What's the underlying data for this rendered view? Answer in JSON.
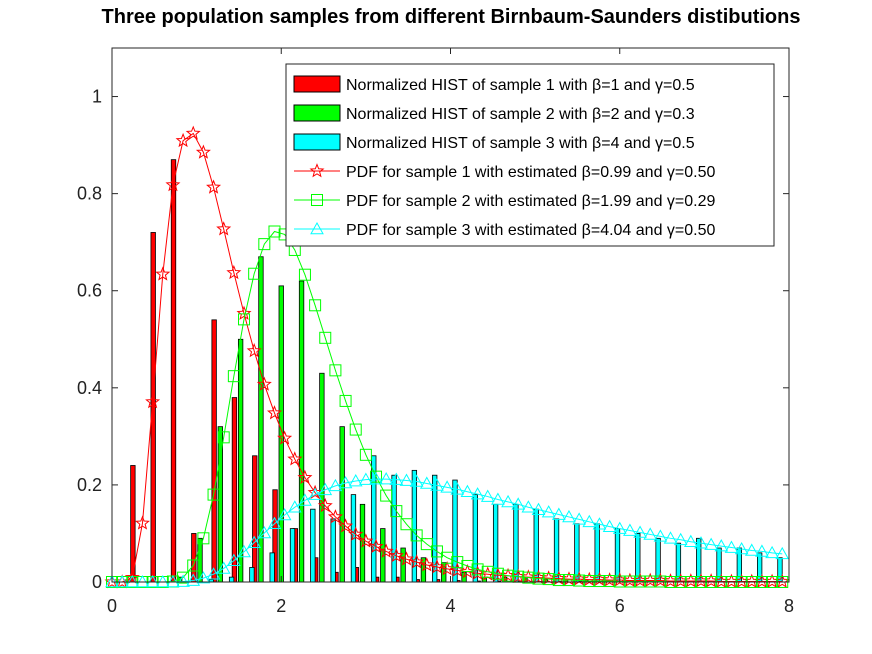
{
  "chart_data": {
    "type": "bar",
    "title": "Three population samples from different Birnbaum-Saunders distibutions",
    "xlabel": "",
    "ylabel": "",
    "xlim": [
      0,
      8
    ],
    "ylim": [
      0,
      1.1
    ],
    "xticks": [
      0,
      2,
      4,
      6,
      8
    ],
    "yticks": [
      0,
      0.2,
      0.4,
      0.6,
      0.8,
      1
    ],
    "xtick_labels": [
      "0",
      "2",
      "4",
      "6",
      "8"
    ],
    "ytick_labels": [
      "0",
      "0.2",
      "0.4",
      "0.6",
      "0.8",
      "1"
    ],
    "grid": false,
    "legend_position": "top-right",
    "histograms": [
      {
        "name": "Normalized HIST of sample 1 with β=1 and γ=0.5",
        "color": "#ff0000",
        "x": [
          0.3,
          0.54,
          0.78,
          1.02,
          1.26,
          1.5,
          1.74,
          1.98,
          2.22,
          2.46,
          2.7,
          2.94,
          3.18,
          3.42,
          3.66,
          3.9,
          4.14,
          4.38,
          4.62,
          4.86,
          5.1,
          5.34,
          5.58,
          5.82,
          6.06,
          6.3,
          6.54,
          6.78,
          7.02,
          7.26,
          7.5,
          7.74
        ],
        "values": [
          0.24,
          0.72,
          0.87,
          0.1,
          0.54,
          0.38,
          0.26,
          0.19,
          0.11,
          0.05,
          0.02,
          0.03,
          0.01,
          0.01,
          0.005,
          0.005,
          0.003,
          0.002,
          0.002,
          0.001,
          0.001,
          0.001,
          0.001,
          0.001,
          0.001,
          0.001,
          0.001,
          0.001,
          0.001,
          0.001,
          0.001,
          0.001
        ]
      },
      {
        "name": "Normalized HIST of sample 2 with β=2 and γ=0.3",
        "color": "#00ff00",
        "x": [
          0.8,
          1.04,
          1.28,
          1.52,
          1.76,
          2.0,
          2.24,
          2.48,
          2.72,
          2.96,
          3.2,
          3.44,
          3.68,
          3.92,
          4.16,
          4.4,
          4.64,
          4.88,
          5.12,
          5.36,
          5.6,
          5.84,
          6.08,
          6.32,
          6.56,
          6.8,
          7.04,
          7.28,
          7.52,
          7.76
        ],
        "values": [
          0.01,
          0.09,
          0.32,
          0.5,
          0.67,
          0.61,
          0.62,
          0.43,
          0.32,
          0.16,
          0.11,
          0.07,
          0.05,
          0.04,
          0.02,
          0.01,
          0.01,
          0.01,
          0.005,
          0.005,
          0.004,
          0.003,
          0.002,
          0.002,
          0.002,
          0.001,
          0.001,
          0.001,
          0.001,
          0.001
        ]
      },
      {
        "name": "Normalized HIST of sample 3 with β=4 and γ=0.5",
        "color": "#00ffff",
        "x": [
          1.12,
          1.36,
          1.6,
          1.84,
          2.08,
          2.32,
          2.56,
          2.8,
          3.04,
          3.28,
          3.52,
          3.76,
          4.0,
          4.24,
          4.48,
          4.72,
          4.96,
          5.2,
          5.44,
          5.68,
          5.92,
          6.16,
          6.4,
          6.64,
          6.88,
          7.12,
          7.36,
          7.6,
          7.84
        ],
        "values": [
          0.005,
          0.01,
          0.03,
          0.06,
          0.11,
          0.15,
          0.13,
          0.18,
          0.26,
          0.22,
          0.23,
          0.22,
          0.21,
          0.18,
          0.16,
          0.16,
          0.15,
          0.13,
          0.12,
          0.12,
          0.11,
          0.1,
          0.09,
          0.08,
          0.09,
          0.07,
          0.07,
          0.06,
          0.05
        ]
      }
    ],
    "series": [
      {
        "name": "PDF for sample 1 with estimated β=0.99 and γ=0.50",
        "color": "#ff0000",
        "marker": "pentagram",
        "beta": 0.99,
        "gamma": 0.5,
        "x": [
          0.0,
          0.12,
          0.24,
          0.36,
          0.48,
          0.6,
          0.72,
          0.84,
          0.96,
          1.08,
          1.2,
          1.32,
          1.44,
          1.56,
          1.68,
          1.8,
          1.92,
          2.04,
          2.16,
          2.28,
          2.4,
          2.52,
          2.64,
          2.76,
          2.88,
          3.0,
          3.12,
          3.24,
          3.36,
          3.48,
          3.6,
          3.72,
          3.84,
          3.96,
          4.08,
          4.2,
          4.32,
          4.44,
          4.56,
          4.68,
          4.8,
          4.92,
          5.04,
          5.16,
          5.28,
          5.4,
          5.52,
          5.64,
          5.76,
          5.88,
          6.0,
          6.12,
          6.24,
          6.36,
          6.48,
          6.6,
          6.72,
          6.84,
          6.96,
          7.08,
          7.2,
          7.32,
          7.44,
          7.56,
          7.68,
          7.8,
          7.92
        ],
        "y": [
          0.0,
          0.0,
          0.009,
          0.121,
          0.371,
          0.634,
          0.818,
          0.909,
          0.924,
          0.885,
          0.813,
          0.727,
          0.637,
          0.553,
          0.476,
          0.407,
          0.348,
          0.296,
          0.253,
          0.215,
          0.184,
          0.157,
          0.134,
          0.115,
          0.098,
          0.084,
          0.073,
          0.063,
          0.054,
          0.047,
          0.041,
          0.035,
          0.031,
          0.027,
          0.024,
          0.021,
          0.018,
          0.016,
          0.014,
          0.013,
          0.011,
          0.01,
          0.009,
          0.008,
          0.007,
          0.006,
          0.006,
          0.005,
          0.005,
          0.004,
          0.004,
          0.003,
          0.003,
          0.003,
          0.003,
          0.002,
          0.002,
          0.002,
          0.002,
          0.002,
          0.001,
          0.001,
          0.001,
          0.001,
          0.001,
          0.001,
          0.001
        ]
      },
      {
        "name": "PDF for sample 2 with estimated β=1.99 and γ=0.29",
        "color": "#00ff00",
        "marker": "square",
        "beta": 1.99,
        "gamma": 0.29,
        "x": [
          0.0,
          0.12,
          0.24,
          0.36,
          0.48,
          0.6,
          0.72,
          0.84,
          0.96,
          1.08,
          1.2,
          1.32,
          1.44,
          1.56,
          1.68,
          1.8,
          1.92,
          2.04,
          2.16,
          2.28,
          2.4,
          2.52,
          2.64,
          2.76,
          2.88,
          3.0,
          3.12,
          3.24,
          3.36,
          3.48,
          3.6,
          3.72,
          3.84,
          3.96,
          4.08,
          4.2,
          4.32,
          4.44,
          4.56,
          4.68,
          4.8,
          4.92,
          5.04,
          5.16,
          5.28,
          5.4,
          5.52,
          5.64,
          5.76,
          5.88,
          6.0,
          6.12,
          6.24,
          6.36,
          6.48,
          6.6,
          6.72,
          6.84,
          6.96,
          7.08,
          7.2,
          7.32,
          7.44,
          7.56,
          7.68,
          7.8,
          7.92
        ],
        "y": [
          0.0,
          0.0,
          0.0,
          0.0,
          0.0,
          0.0,
          0.001,
          0.009,
          0.034,
          0.09,
          0.18,
          0.298,
          0.424,
          0.541,
          0.635,
          0.696,
          0.722,
          0.716,
          0.684,
          0.633,
          0.57,
          0.503,
          0.436,
          0.373,
          0.314,
          0.262,
          0.217,
          0.178,
          0.146,
          0.119,
          0.096,
          0.078,
          0.063,
          0.05,
          0.041,
          0.033,
          0.026,
          0.021,
          0.017,
          0.013,
          0.011,
          0.009,
          0.007,
          0.006,
          0.004,
          0.004,
          0.003,
          0.002,
          0.002,
          0.002,
          0.001,
          0.001,
          0.001,
          0.001,
          0.001,
          0.0,
          0.0,
          0.0,
          0.0,
          0.0,
          0.0,
          0.0,
          0.0,
          0.0,
          0.0,
          0.0,
          0.0
        ]
      },
      {
        "name": "PDF for sample 3 with estimated β=4.04 and γ=0.50",
        "color": "#00ffff",
        "marker": "triangle",
        "beta": 4.04,
        "gamma": 0.5,
        "x": [
          0.0,
          0.12,
          0.24,
          0.36,
          0.48,
          0.6,
          0.72,
          0.84,
          0.96,
          1.08,
          1.2,
          1.32,
          1.44,
          1.56,
          1.68,
          1.8,
          1.92,
          2.04,
          2.16,
          2.28,
          2.4,
          2.52,
          2.64,
          2.76,
          2.88,
          3.0,
          3.12,
          3.24,
          3.36,
          3.48,
          3.6,
          3.72,
          3.84,
          3.96,
          4.08,
          4.2,
          4.32,
          4.44,
          4.56,
          4.68,
          4.8,
          4.92,
          5.04,
          5.16,
          5.28,
          5.4,
          5.52,
          5.64,
          5.76,
          5.88,
          6.0,
          6.12,
          6.24,
          6.36,
          6.48,
          6.6,
          6.72,
          6.84,
          6.96,
          7.08,
          7.2,
          7.32,
          7.44,
          7.56,
          7.68,
          7.8,
          7.92
        ],
        "y": [
          0.0,
          0.0,
          0.0,
          0.0,
          0.0,
          0.0,
          0.0,
          0.001,
          0.003,
          0.008,
          0.016,
          0.028,
          0.044,
          0.062,
          0.081,
          0.101,
          0.12,
          0.138,
          0.154,
          0.168,
          0.18,
          0.19,
          0.198,
          0.204,
          0.208,
          0.211,
          0.212,
          0.212,
          0.211,
          0.209,
          0.207,
          0.203,
          0.199,
          0.195,
          0.191,
          0.186,
          0.181,
          0.176,
          0.17,
          0.165,
          0.16,
          0.154,
          0.149,
          0.144,
          0.139,
          0.134,
          0.129,
          0.124,
          0.119,
          0.114,
          0.11,
          0.106,
          0.102,
          0.098,
          0.094,
          0.09,
          0.087,
          0.083,
          0.08,
          0.077,
          0.074,
          0.071,
          0.068,
          0.065,
          0.063,
          0.06,
          0.058
        ]
      }
    ]
  }
}
